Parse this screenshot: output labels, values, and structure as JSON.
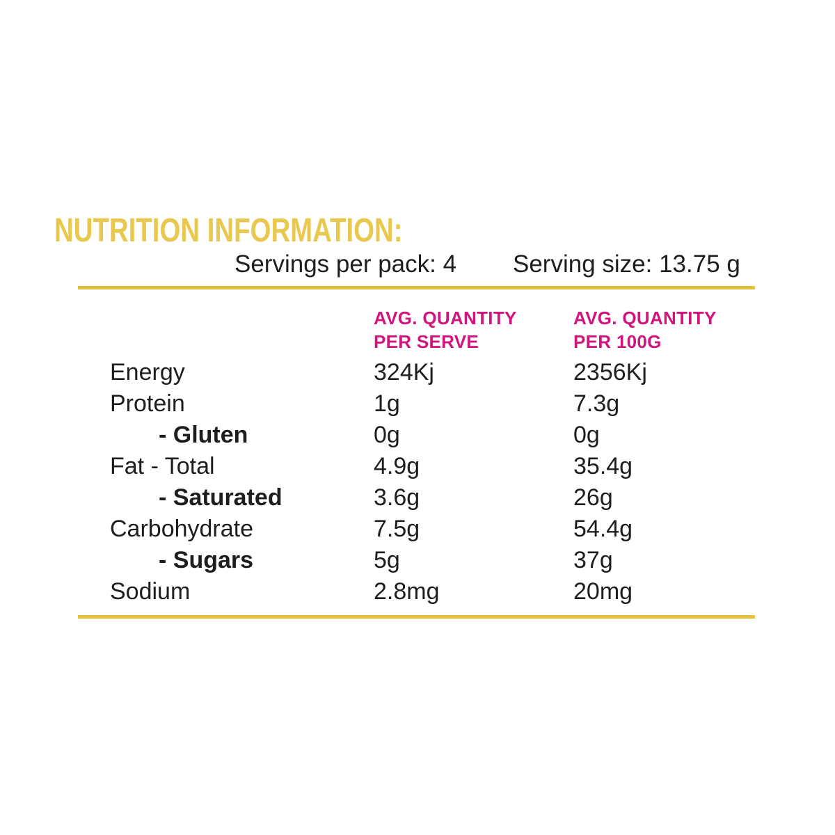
{
  "colors": {
    "title_gold": "#e8c84e",
    "rule_gold": "#e0c23f",
    "header_pink": "#d2157d",
    "text": "#1e1e1e",
    "background": "#ffffff"
  },
  "title": "NUTRITION INFORMATION:",
  "serving_info": {
    "servings_per_pack": "Servings per pack: 4",
    "serving_size": "Serving size: 13.75 g"
  },
  "table": {
    "headers": {
      "per_serve": {
        "line1": "AVG. QUANTITY",
        "line2": "PER SERVE"
      },
      "per_100g": {
        "line1": "AVG. QUANTITY",
        "line2": "PER 100G"
      }
    },
    "rows": [
      {
        "label": "Energy",
        "per_serve": "324Kj",
        "per_100g": "2356Kj"
      },
      {
        "label": "Protein",
        "per_serve": "1g",
        "per_100g": "7.3g"
      },
      {
        "label": "- Gluten",
        "per_serve": "0g",
        "per_100g": "0g"
      },
      {
        "label": "Fat - Total",
        "per_serve": "4.9g",
        "per_100g": "35.4g"
      },
      {
        "label": "- Saturated",
        "per_serve": "3.6g",
        "per_100g": "26g"
      },
      {
        "label": "Carbohydrate",
        "per_serve": "7.5g",
        "per_100g": "54.4g"
      },
      {
        "label": "- Sugars",
        "per_serve": "5g",
        "per_100g": "37g"
      },
      {
        "label": "Sodium",
        "per_serve": "2.8mg",
        "per_100g": "20mg"
      }
    ]
  }
}
